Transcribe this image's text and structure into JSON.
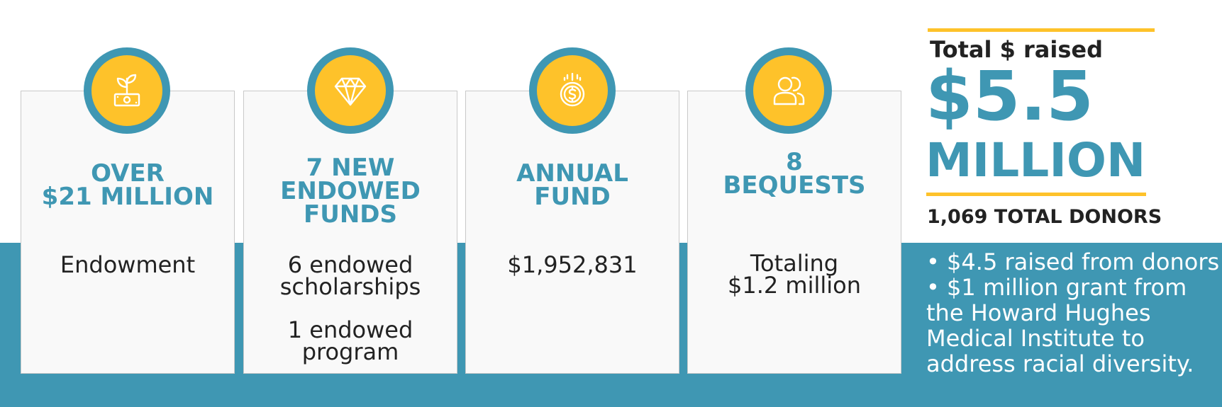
{
  "colors": {
    "teal": "#3f97b3",
    "yellow": "#fec22a",
    "card_bg": "#f9f9f9",
    "text_dark": "#222222"
  },
  "cards": [
    {
      "icon": "plant-money-icon",
      "title": "OVER\n$21 MILLION",
      "lines": [
        "Endowment"
      ]
    },
    {
      "icon": "diamond-icon",
      "title": "7 NEW\nENDOWED\nFUNDS",
      "lines": [
        "6 endowed\nscholarships",
        "1 endowed\nprogram"
      ]
    },
    {
      "icon": "dollar-coin-icon",
      "title": "ANNUAL\nFUND",
      "lines": [
        "$1,952,831"
      ]
    },
    {
      "icon": "people-icon",
      "title": "8\nBEQUESTS",
      "lines": [
        "Totaling\n$1.2 million"
      ]
    }
  ],
  "summary": {
    "label": "Total $ raised",
    "amount": "$5.5",
    "unit": "MILLION",
    "donors": "1,069 TOTAL DONORS",
    "notes": [
      "• $4.5 raised from donors",
      "• $1 million grant from the Howard Hughes Medical Institute to address racial diversity."
    ]
  }
}
